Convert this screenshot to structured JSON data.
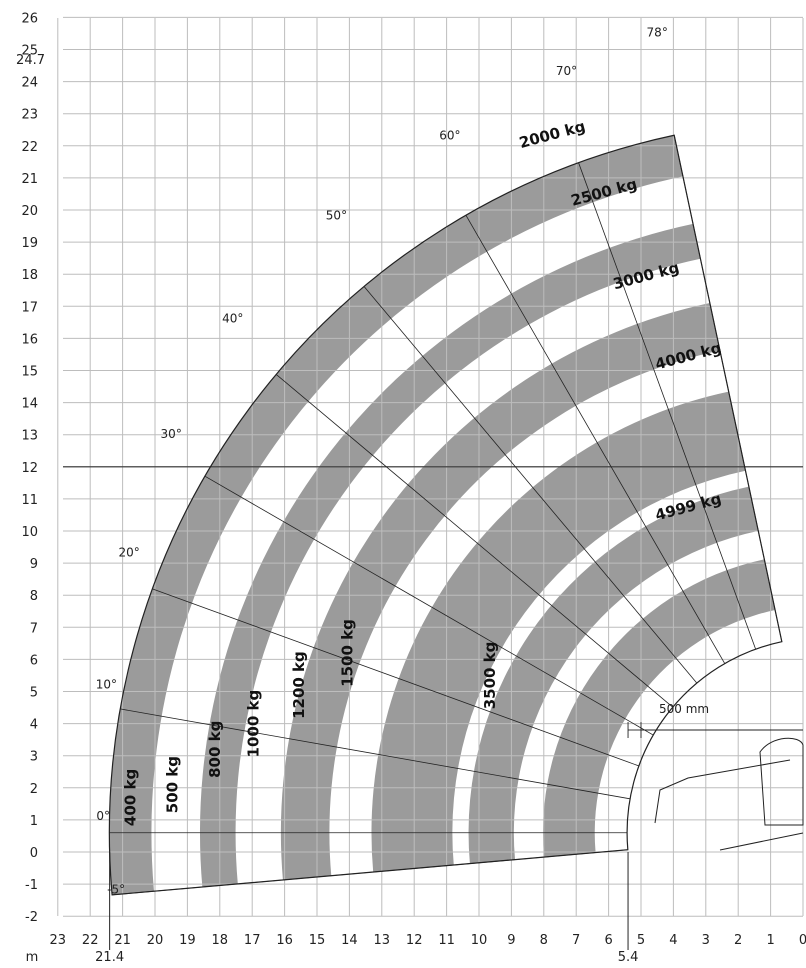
{
  "chart_data": {
    "type": "area",
    "title": "",
    "x_unit": "m",
    "x_axis_direction": "reversed",
    "xlim": [
      0,
      23
    ],
    "ylim": [
      -2,
      26
    ],
    "x_ticks": [
      23,
      22,
      21,
      20,
      19,
      18,
      17,
      16,
      15,
      14,
      13,
      12,
      11,
      10,
      9,
      8,
      7,
      6,
      5,
      4,
      3,
      2,
      1,
      0
    ],
    "y_ticks": [
      -2,
      -1,
      0,
      1,
      2,
      3,
      4,
      5,
      6,
      7,
      8,
      9,
      10,
      11,
      12,
      13,
      14,
      15,
      16,
      17,
      18,
      19,
      20,
      21,
      22,
      23,
      24,
      25,
      26
    ],
    "marked_x_values": [
      21.4,
      5.4
    ],
    "marked_y_values": [
      24.7
    ],
    "max_height_m": 24.7,
    "max_outreach_m": 21.4,
    "min_outreach_m": 5.4,
    "dimension_annotation": "500 mm",
    "boom_angles": [
      {
        "label": "-5°",
        "x": 21.2,
        "y": -1.3
      },
      {
        "label": "0°",
        "x": 21.6,
        "y": 1.0
      },
      {
        "label": "10°",
        "x": 21.5,
        "y": 5.1
      },
      {
        "label": "20°",
        "x": 20.8,
        "y": 9.2
      },
      {
        "label": "30°",
        "x": 19.5,
        "y": 12.9
      },
      {
        "label": "40°",
        "x": 17.6,
        "y": 16.5
      },
      {
        "label": "50°",
        "x": 14.4,
        "y": 19.7
      },
      {
        "label": "60°",
        "x": 10.9,
        "y": 22.2
      },
      {
        "label": "70°",
        "x": 7.3,
        "y": 24.2
      },
      {
        "label": "78°",
        "x": 4.5,
        "y": 25.4
      }
    ],
    "load_zones": [
      {
        "label": "400 kg",
        "shaded": true,
        "outer_x": 21.4,
        "inner_x": 20.1
      },
      {
        "label": "500 kg",
        "shaded": false,
        "outer_x": 20.1,
        "inner_x": 18.6
      },
      {
        "label": "800 kg",
        "shaded": true,
        "outer_x": 18.6,
        "inner_x": 17.5
      },
      {
        "label": "1000 kg",
        "shaded": false,
        "outer_x": 17.5,
        "inner_x": 16.1
      },
      {
        "label": "1200 kg",
        "shaded": true,
        "outer_x": 16.1,
        "inner_x": 14.6
      },
      {
        "label": "1500 kg",
        "shaded": false,
        "outer_x": 14.6,
        "inner_x": 13.3
      },
      {
        "label": "2000 kg",
        "shaded": true,
        "outer_x": 13.3,
        "inner_x": 10.8
      },
      {
        "label": "2500 kg",
        "shaded": false,
        "outer_x": 10.8,
        "inner_x": 10.3
      },
      {
        "label": "3000 kg",
        "shaded": true,
        "outer_x": 10.3,
        "inner_x": 8.9
      },
      {
        "label": "3500 kg",
        "shaded": false,
        "outer_x": 8.9,
        "inner_x": 8.0
      },
      {
        "label": "4000 kg",
        "shaded": true,
        "outer_x": 8.0,
        "inner_x": 6.4
      },
      {
        "label": "4999 kg",
        "shaded": false,
        "outer_x": 6.4,
        "inner_x": 5.4
      }
    ],
    "load_label_positions": [
      {
        "label": "400 kg",
        "x": 20.6,
        "y": 1.7,
        "angle": -90
      },
      {
        "label": "500 kg",
        "x": 19.3,
        "y": 2.1,
        "angle": -90
      },
      {
        "label": "800 kg",
        "x": 18.0,
        "y": 3.2,
        "angle": -90
      },
      {
        "label": "1000 kg",
        "x": 16.8,
        "y": 4.0,
        "angle": -90
      },
      {
        "label": "1200 kg",
        "x": 15.4,
        "y": 5.2,
        "angle": -90
      },
      {
        "label": "1500 kg",
        "x": 13.9,
        "y": 6.2,
        "angle": -90
      },
      {
        "label": "3500 kg",
        "x": 9.5,
        "y": 5.5,
        "angle": -90
      },
      {
        "label": "2000 kg",
        "x": 7.7,
        "y": 22.2,
        "angle": -15
      },
      {
        "label": "2500 kg",
        "x": 6.1,
        "y": 20.4,
        "angle": -15
      },
      {
        "label": "3000 kg",
        "x": 4.8,
        "y": 17.8,
        "angle": -15
      },
      {
        "label": "4000 kg",
        "x": 3.5,
        "y": 15.3,
        "angle": -15
      },
      {
        "label": "4999 kg",
        "x": 3.5,
        "y": 10.6,
        "angle": -15
      }
    ],
    "colors": {
      "shaded_zone": "#9b9b9b",
      "grid": "#bdbdbd",
      "outline": "#222222",
      "background": "#ffffff"
    }
  }
}
